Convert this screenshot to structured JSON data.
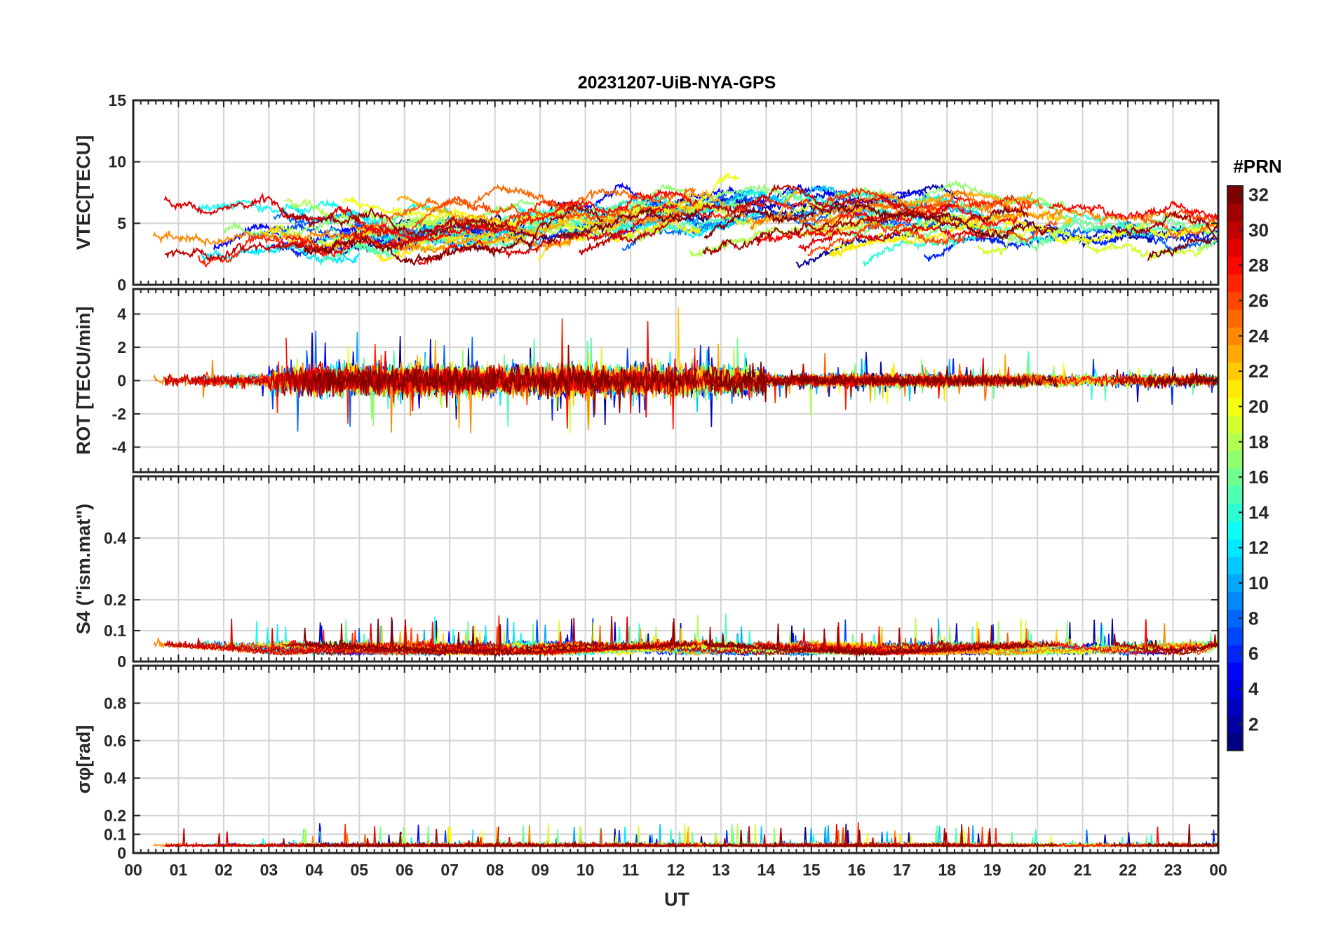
{
  "figure": {
    "title": "20231207-UiB-NYA-GPS",
    "xlabel": "UT"
  },
  "colorbar": {
    "label": "#PRN",
    "range": [
      1,
      32
    ],
    "ticks": [
      "2",
      "4",
      "6",
      "8",
      "10",
      "12",
      "14",
      "16",
      "18",
      "20",
      "22",
      "24",
      "26",
      "28",
      "30",
      "32"
    ],
    "colormap": "jet"
  },
  "chart_data": [
    {
      "type": "line",
      "panel": "vtec",
      "ylabel": "VTEC[TECU]",
      "ylim": [
        0,
        15
      ],
      "yticks": [
        "0",
        "5",
        "10",
        "15"
      ],
      "xlim": [
        0,
        24
      ],
      "xticks": [
        "00",
        "01",
        "02",
        "03",
        "04",
        "05",
        "06",
        "07",
        "08",
        "09",
        "10",
        "11",
        "12",
        "13",
        "14",
        "15",
        "16",
        "17",
        "18",
        "19",
        "20",
        "21",
        "22",
        "23",
        "00"
      ],
      "grid": true,
      "series_note": "one trace per satellite PRN, colored by PRN"
    },
    {
      "type": "line",
      "panel": "rot",
      "ylabel": "ROT [TECU/min]",
      "ylim": [
        -5.5,
        5.5
      ],
      "yticks": [
        "-4",
        "-2",
        "0",
        "2",
        "4"
      ],
      "xlim": [
        0,
        24
      ],
      "grid": true
    },
    {
      "type": "line",
      "panel": "s4",
      "ylabel": "S4 (\"ism.mat\")",
      "ylim": [
        0,
        0.6
      ],
      "yticks": [
        "0",
        "0.1",
        "0.2",
        "0.4"
      ],
      "xlim": [
        0,
        24
      ],
      "grid": true
    },
    {
      "type": "line",
      "panel": "sigma",
      "ylabel": "σφ[rad]",
      "ylim": [
        0,
        1
      ],
      "yticks": [
        "0",
        "0.1",
        "0.2",
        "0.4",
        "0.6",
        "0.8"
      ],
      "xlim": [
        0,
        24
      ],
      "grid": true
    }
  ]
}
